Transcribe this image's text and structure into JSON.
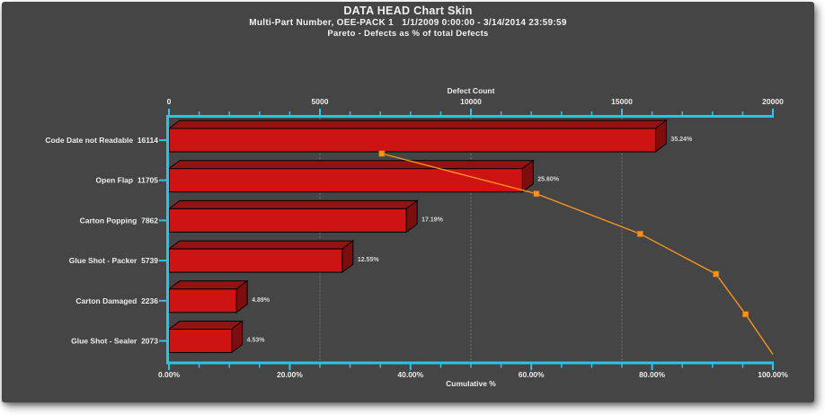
{
  "header": {
    "title": "DATA HEAD Chart Skin",
    "subtitle": "Multi-Part Number, OEE-PACK 1   1/1/2009 0:00:00 - 3/14/2014 23:59:59",
    "pareto_label": "Pareto - Defects as % of total Defects"
  },
  "chart_data": {
    "type": "bar",
    "subtype": "pareto-horizontal-3d",
    "title": "DATA HEAD Chart Skin",
    "categories": [
      "Code Date not Readable",
      "Open Flap",
      "Carton Popping",
      "Glue Shot - Packer",
      "Carton Damaged",
      "Glue Shot - Sealer"
    ],
    "values": [
      16114,
      11705,
      7862,
      5739,
      2236,
      2073
    ],
    "percent_of_total_labels": [
      "35.24%",
      "25.60%",
      "17.19%",
      "12.55%",
      "4.89%",
      "4.53%"
    ],
    "cumulative_percent": [
      35.24,
      60.84,
      78.03,
      90.58,
      95.47,
      100.0
    ],
    "top_axis": {
      "label": "Defect Count",
      "min": 0,
      "max": 20000,
      "tick_labels": [
        "0",
        "5000",
        "10000",
        "15000",
        "20000"
      ],
      "major_tick_step": 5000,
      "minor_tick_step": 1000
    },
    "bottom_axis": {
      "label": "Cumulative %",
      "min": 0,
      "max": 100,
      "tick_labels": [
        "0.00%",
        "20.00%",
        "40.00%",
        "60.00%",
        "80.00%",
        "100.00%"
      ],
      "major_tick_step": 20,
      "minor_tick_step": 5
    },
    "gridlines_percent": [
      25,
      50,
      75
    ],
    "grid": "dotted-vertical",
    "legend": "none",
    "colors": {
      "background": "#454545",
      "axis": "#29C4E9",
      "bar_front": "#CE1313",
      "bar_top": "#931212",
      "bar_side": "#7E0E0E",
      "bar_outline": "#000000",
      "cumulative_line": "#F6921E",
      "marker_border": "#B06008",
      "gridline": "#98A2C6",
      "text": "#EDEDED",
      "percent_label_text": "#D6D6D6"
    }
  }
}
